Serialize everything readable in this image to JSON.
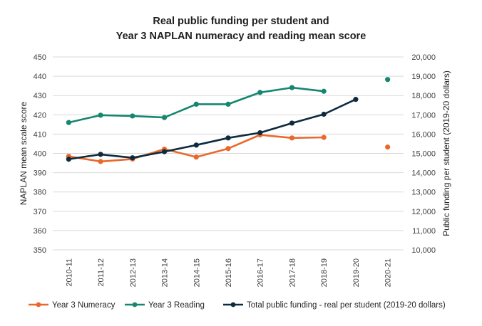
{
  "chart_data": {
    "type": "line",
    "title_line1": "Real public funding per student and",
    "title_line2": "Year 3 NAPLAN numeracy and reading mean score",
    "ylabel_left": "NAPLAN mean scale score",
    "ylabel_right": "Public funding per student (2019-20 dollars)",
    "ylim_left": [
      350,
      450
    ],
    "ylim_right": [
      10000,
      20000
    ],
    "yticks_left": [
      "350",
      "360",
      "370",
      "380",
      "390",
      "400",
      "410",
      "420",
      "430",
      "440",
      "450"
    ],
    "yticks_right": [
      "10,000",
      "11,000",
      "12,000",
      "13,000",
      "14,000",
      "15,000",
      "16,000",
      "17,000",
      "18,000",
      "19,000",
      "20,000"
    ],
    "categories": [
      "2010-11",
      "2011-12",
      "2012-13",
      "2013-14",
      "2014-15",
      "2015-16",
      "2016-17",
      "2017-18",
      "2018-19",
      "2019-20",
      "2020-21"
    ],
    "grid": "horizontal",
    "legend_position": "bottom",
    "series": [
      {
        "name": "Year 3 Numeracy",
        "axis": "left",
        "color": "#e9692c",
        "values": [
          398.5,
          395.8,
          397.1,
          402.2,
          398.1,
          402.5,
          409.6,
          408.0,
          408.3,
          null,
          403.3
        ]
      },
      {
        "name": "Year 3 Reading",
        "axis": "left",
        "color": "#15866f",
        "values": [
          416.0,
          419.8,
          419.4,
          418.6,
          425.5,
          425.5,
          431.6,
          434.1,
          432.2,
          null,
          438.3
        ]
      },
      {
        "name": "Total public funding - real per student (2019-20 dollars)",
        "axis": "right",
        "color": "#0d2b3e",
        "values": [
          14700,
          14950,
          14770,
          15090,
          15430,
          15800,
          16070,
          16570,
          17030,
          17800,
          null
        ]
      }
    ]
  }
}
